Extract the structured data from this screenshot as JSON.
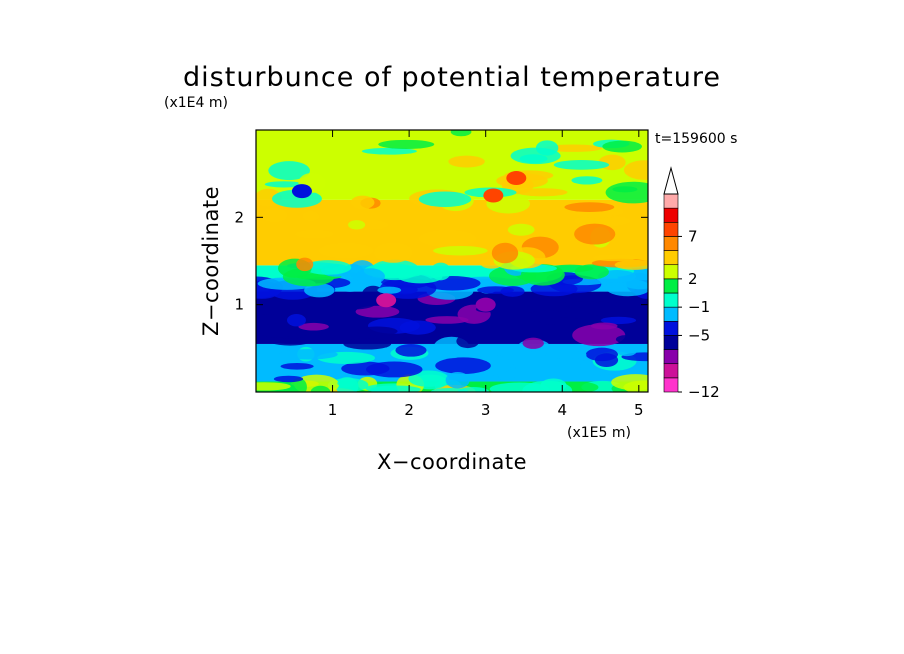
{
  "chart_data": {
    "type": "heatmap",
    "title": "disturbunce of potential temperature",
    "xlabel": "X−coordinate",
    "ylabel": "Z−coordinate",
    "x_unit": "(x1E5 m)",
    "y_unit": "(x1E4 m)",
    "time_label": "t=159600 s",
    "x_ticks": [
      1,
      2,
      3,
      4,
      5
    ],
    "y_ticks": [
      1,
      2
    ],
    "xlim": [
      0,
      5.12
    ],
    "ylim": [
      0,
      3.0
    ],
    "colorbar": {
      "levels": [
        -12,
        -11,
        -9,
        -7,
        -5,
        -3,
        -1,
        1,
        2,
        3,
        5,
        7,
        9,
        11
      ],
      "tick_labels": [
        "7",
        "2",
        "−1",
        "−5",
        "−12"
      ],
      "tick_values": [
        7,
        2,
        -1,
        -5,
        -12
      ],
      "colors": [
        "#ff33cc",
        "#cc1199",
        "#8800aa",
        "#000099",
        "#0011dd",
        "#00bbff",
        "#00ffcc",
        "#00ee44",
        "#ccff00",
        "#ffcc00",
        "#ff8800",
        "#ff4400",
        "#ee0000",
        "#ffaaaa"
      ],
      "extend": "max"
    },
    "bands": [
      {
        "z_from": 0.0,
        "z_to": 0.12,
        "value": 1.5
      },
      {
        "z_from": 0.12,
        "z_to": 0.55,
        "value": -2
      },
      {
        "z_from": 0.55,
        "z_to": 1.15,
        "value": -6
      },
      {
        "z_from": 1.15,
        "z_to": 1.3,
        "value": -3
      },
      {
        "z_from": 1.3,
        "z_to": 1.45,
        "value": 0
      },
      {
        "z_from": 1.45,
        "z_to": 2.2,
        "value": 4
      },
      {
        "z_from": 2.2,
        "z_to": 3.0,
        "value": 2
      }
    ],
    "features": [
      {
        "x": 3.1,
        "z": 2.25,
        "value": 8
      },
      {
        "x": 3.4,
        "z": 2.45,
        "value": 8
      },
      {
        "x": 0.6,
        "z": 2.3,
        "value": -4
      },
      {
        "x": 1.7,
        "z": 1.05,
        "value": -10
      },
      {
        "x": 3.0,
        "z": 1.0,
        "value": -9
      }
    ]
  }
}
